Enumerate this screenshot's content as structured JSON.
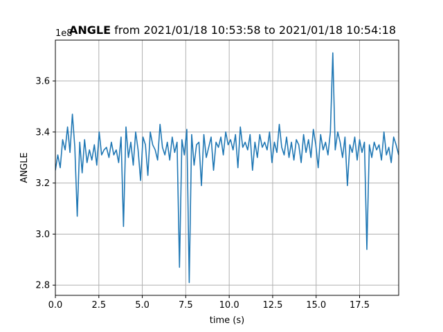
{
  "chart_data": {
    "type": "line",
    "title_bold": "ANGLE",
    "title_rest": " from 2021/01/18 10:53:58 to 2021/01/18 10:54:18",
    "xlabel": "time (s)",
    "ylabel": "ANGLE",
    "y_offset_label": "1e8",
    "xlim": [
      0,
      19.75
    ],
    "ylim": [
      2.76,
      3.76
    ],
    "x_ticks": [
      0.0,
      2.5,
      5.0,
      7.5,
      10.0,
      12.5,
      15.0,
      17.5
    ],
    "x_tick_labels": [
      "0.0",
      "2.5",
      "5.0",
      "7.5",
      "10.0",
      "12.5",
      "15.0",
      "17.5"
    ],
    "y_ticks": [
      2.8,
      3.0,
      3.2,
      3.4,
      3.6
    ],
    "y_tick_labels": [
      "2.8",
      "3.0",
      "3.2",
      "3.4",
      "3.6"
    ],
    "grid": true,
    "series": [
      {
        "color": "#1f77b4",
        "x": [
          0.0,
          0.14,
          0.28,
          0.42,
          0.56,
          0.7,
          0.84,
          0.98,
          1.12,
          1.26,
          1.4,
          1.54,
          1.68,
          1.82,
          1.96,
          2.1,
          2.24,
          2.38,
          2.52,
          2.66,
          2.8,
          2.94,
          3.08,
          3.22,
          3.36,
          3.5,
          3.64,
          3.78,
          3.92,
          4.06,
          4.2,
          4.34,
          4.48,
          4.62,
          4.76,
          4.9,
          5.04,
          5.18,
          5.32,
          5.46,
          5.6,
          5.74,
          5.88,
          6.02,
          6.16,
          6.3,
          6.44,
          6.58,
          6.72,
          6.86,
          7.0,
          7.14,
          7.28,
          7.42,
          7.56,
          7.7,
          7.84,
          7.98,
          8.12,
          8.26,
          8.4,
          8.54,
          8.68,
          8.82,
          8.96,
          9.1,
          9.24,
          9.38,
          9.52,
          9.66,
          9.8,
          9.94,
          10.08,
          10.22,
          10.36,
          10.5,
          10.64,
          10.78,
          10.92,
          11.06,
          11.2,
          11.34,
          11.48,
          11.62,
          11.76,
          11.9,
          12.04,
          12.18,
          12.32,
          12.46,
          12.6,
          12.74,
          12.88,
          13.02,
          13.16,
          13.3,
          13.44,
          13.58,
          13.72,
          13.86,
          14.0,
          14.14,
          14.28,
          14.42,
          14.56,
          14.7,
          14.84,
          14.98,
          15.12,
          15.26,
          15.4,
          15.54,
          15.68,
          15.82,
          15.96,
          16.1,
          16.24,
          16.38,
          16.52,
          16.66,
          16.8,
          16.94,
          17.08,
          17.22,
          17.36,
          17.5,
          17.64,
          17.78,
          17.92,
          18.06,
          18.2,
          18.34,
          18.48,
          18.62,
          18.76,
          18.9,
          19.04,
          19.18,
          19.32,
          19.46,
          19.6,
          19.75
        ],
        "y": [
          3.25,
          3.31,
          3.26,
          3.37,
          3.33,
          3.42,
          3.32,
          3.47,
          3.34,
          3.07,
          3.36,
          3.24,
          3.37,
          3.28,
          3.33,
          3.29,
          3.35,
          3.27,
          3.4,
          3.31,
          3.33,
          3.34,
          3.3,
          3.36,
          3.31,
          3.33,
          3.28,
          3.38,
          3.03,
          3.42,
          3.3,
          3.36,
          3.27,
          3.4,
          3.33,
          3.21,
          3.38,
          3.35,
          3.23,
          3.4,
          3.35,
          3.33,
          3.29,
          3.43,
          3.34,
          3.31,
          3.36,
          3.29,
          3.38,
          3.32,
          3.36,
          2.87,
          3.37,
          3.31,
          3.41,
          2.81,
          3.39,
          3.27,
          3.35,
          3.36,
          3.19,
          3.39,
          3.3,
          3.34,
          3.38,
          3.25,
          3.36,
          3.34,
          3.38,
          3.31,
          3.4,
          3.35,
          3.37,
          3.33,
          3.39,
          3.26,
          3.42,
          3.34,
          3.36,
          3.33,
          3.39,
          3.25,
          3.36,
          3.3,
          3.39,
          3.34,
          3.36,
          3.33,
          3.4,
          3.28,
          3.36,
          3.32,
          3.43,
          3.34,
          3.31,
          3.38,
          3.3,
          3.36,
          3.29,
          3.37,
          3.35,
          3.28,
          3.39,
          3.32,
          3.37,
          3.3,
          3.41,
          3.35,
          3.26,
          3.39,
          3.33,
          3.36,
          3.31,
          3.4,
          3.71,
          3.33,
          3.4,
          3.36,
          3.3,
          3.38,
          3.19,
          3.35,
          3.32,
          3.38,
          3.29,
          3.37,
          3.32,
          3.36,
          2.94,
          3.35,
          3.3,
          3.36,
          3.33,
          3.35,
          3.29,
          3.4,
          3.31,
          3.34,
          3.28,
          3.38,
          3.35,
          3.31
        ]
      }
    ]
  }
}
